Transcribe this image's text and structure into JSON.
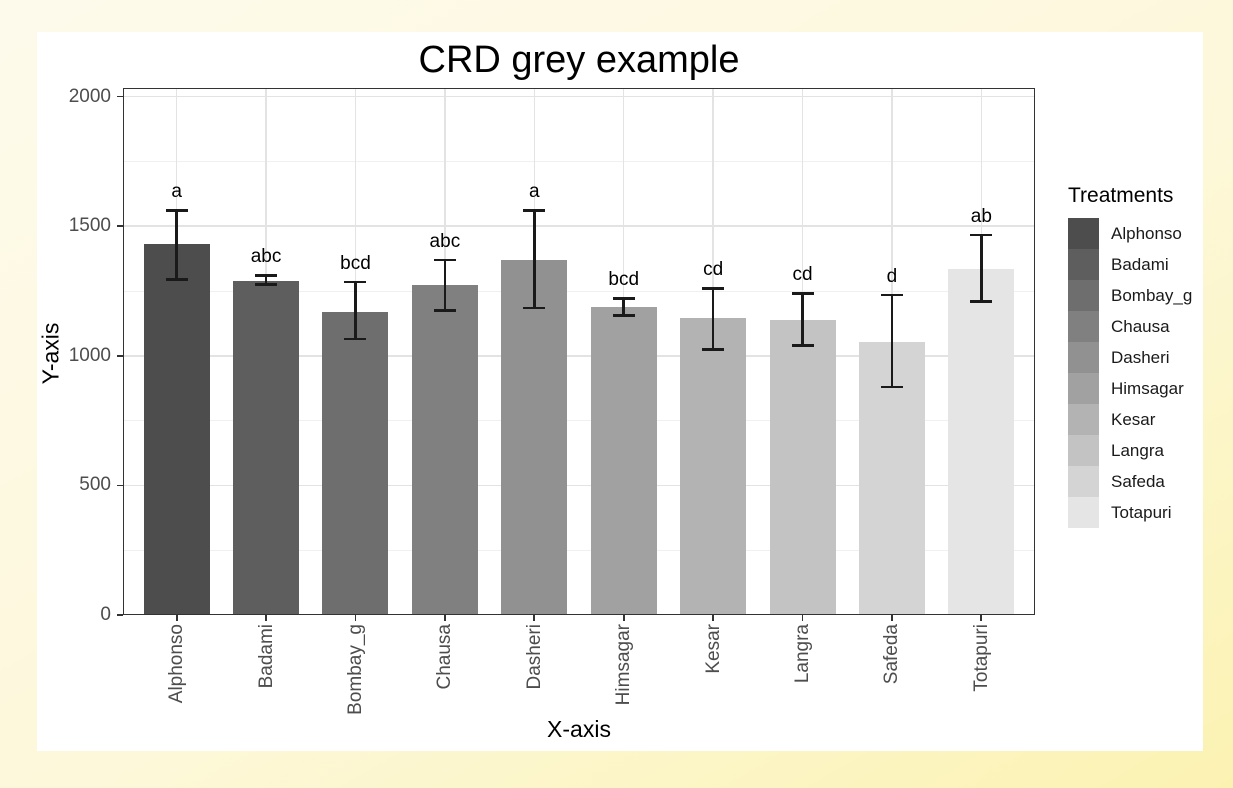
{
  "page": {
    "background_outer_top": "#fdfaec",
    "background_outer_bottom": "#fbf2b2",
    "chart_background": "#ffffff"
  },
  "chart_data": {
    "type": "bar",
    "title": "CRD grey example",
    "xlabel": "X-axis",
    "ylabel": "Y-axis",
    "ylim": [
      0,
      2000
    ],
    "yticks": [
      0,
      500,
      1000,
      1500,
      2000
    ],
    "minor_grid_step": 250,
    "grid": true,
    "legend_title": "Treatments",
    "legend_position": "right",
    "categories": [
      "Alphonso",
      "Badami",
      "Bombay_g",
      "Chausa",
      "Dasheri",
      "Himsagar",
      "Kesar",
      "Langra",
      "Safeda",
      "Totapuri"
    ],
    "values": [
      1430,
      1290,
      1170,
      1275,
      1370,
      1190,
      1145,
      1140,
      1055,
      1335
    ],
    "error_low": [
      1290,
      1270,
      1060,
      1170,
      1180,
      1150,
      1020,
      1035,
      875,
      1205
    ],
    "error_high": [
      1565,
      1315,
      1290,
      1375,
      1565,
      1225,
      1265,
      1245,
      1240,
      1470
    ],
    "sig_letters": [
      "a",
      "abc",
      "bcd",
      "abc",
      "a",
      "bcd",
      "cd",
      "cd",
      "d",
      "ab"
    ],
    "bar_colors": [
      "#4d4d4d",
      "#5e5e5e",
      "#6e6e6e",
      "#808080",
      "#919191",
      "#a1a1a1",
      "#b3b3b3",
      "#c3c3c3",
      "#d4d4d4",
      "#e5e5e5"
    ],
    "error_bar_color": "#1a1a1a",
    "gridline_major_color": "#e3e3e3",
    "gridline_minor_color": "#f0f0f0"
  }
}
